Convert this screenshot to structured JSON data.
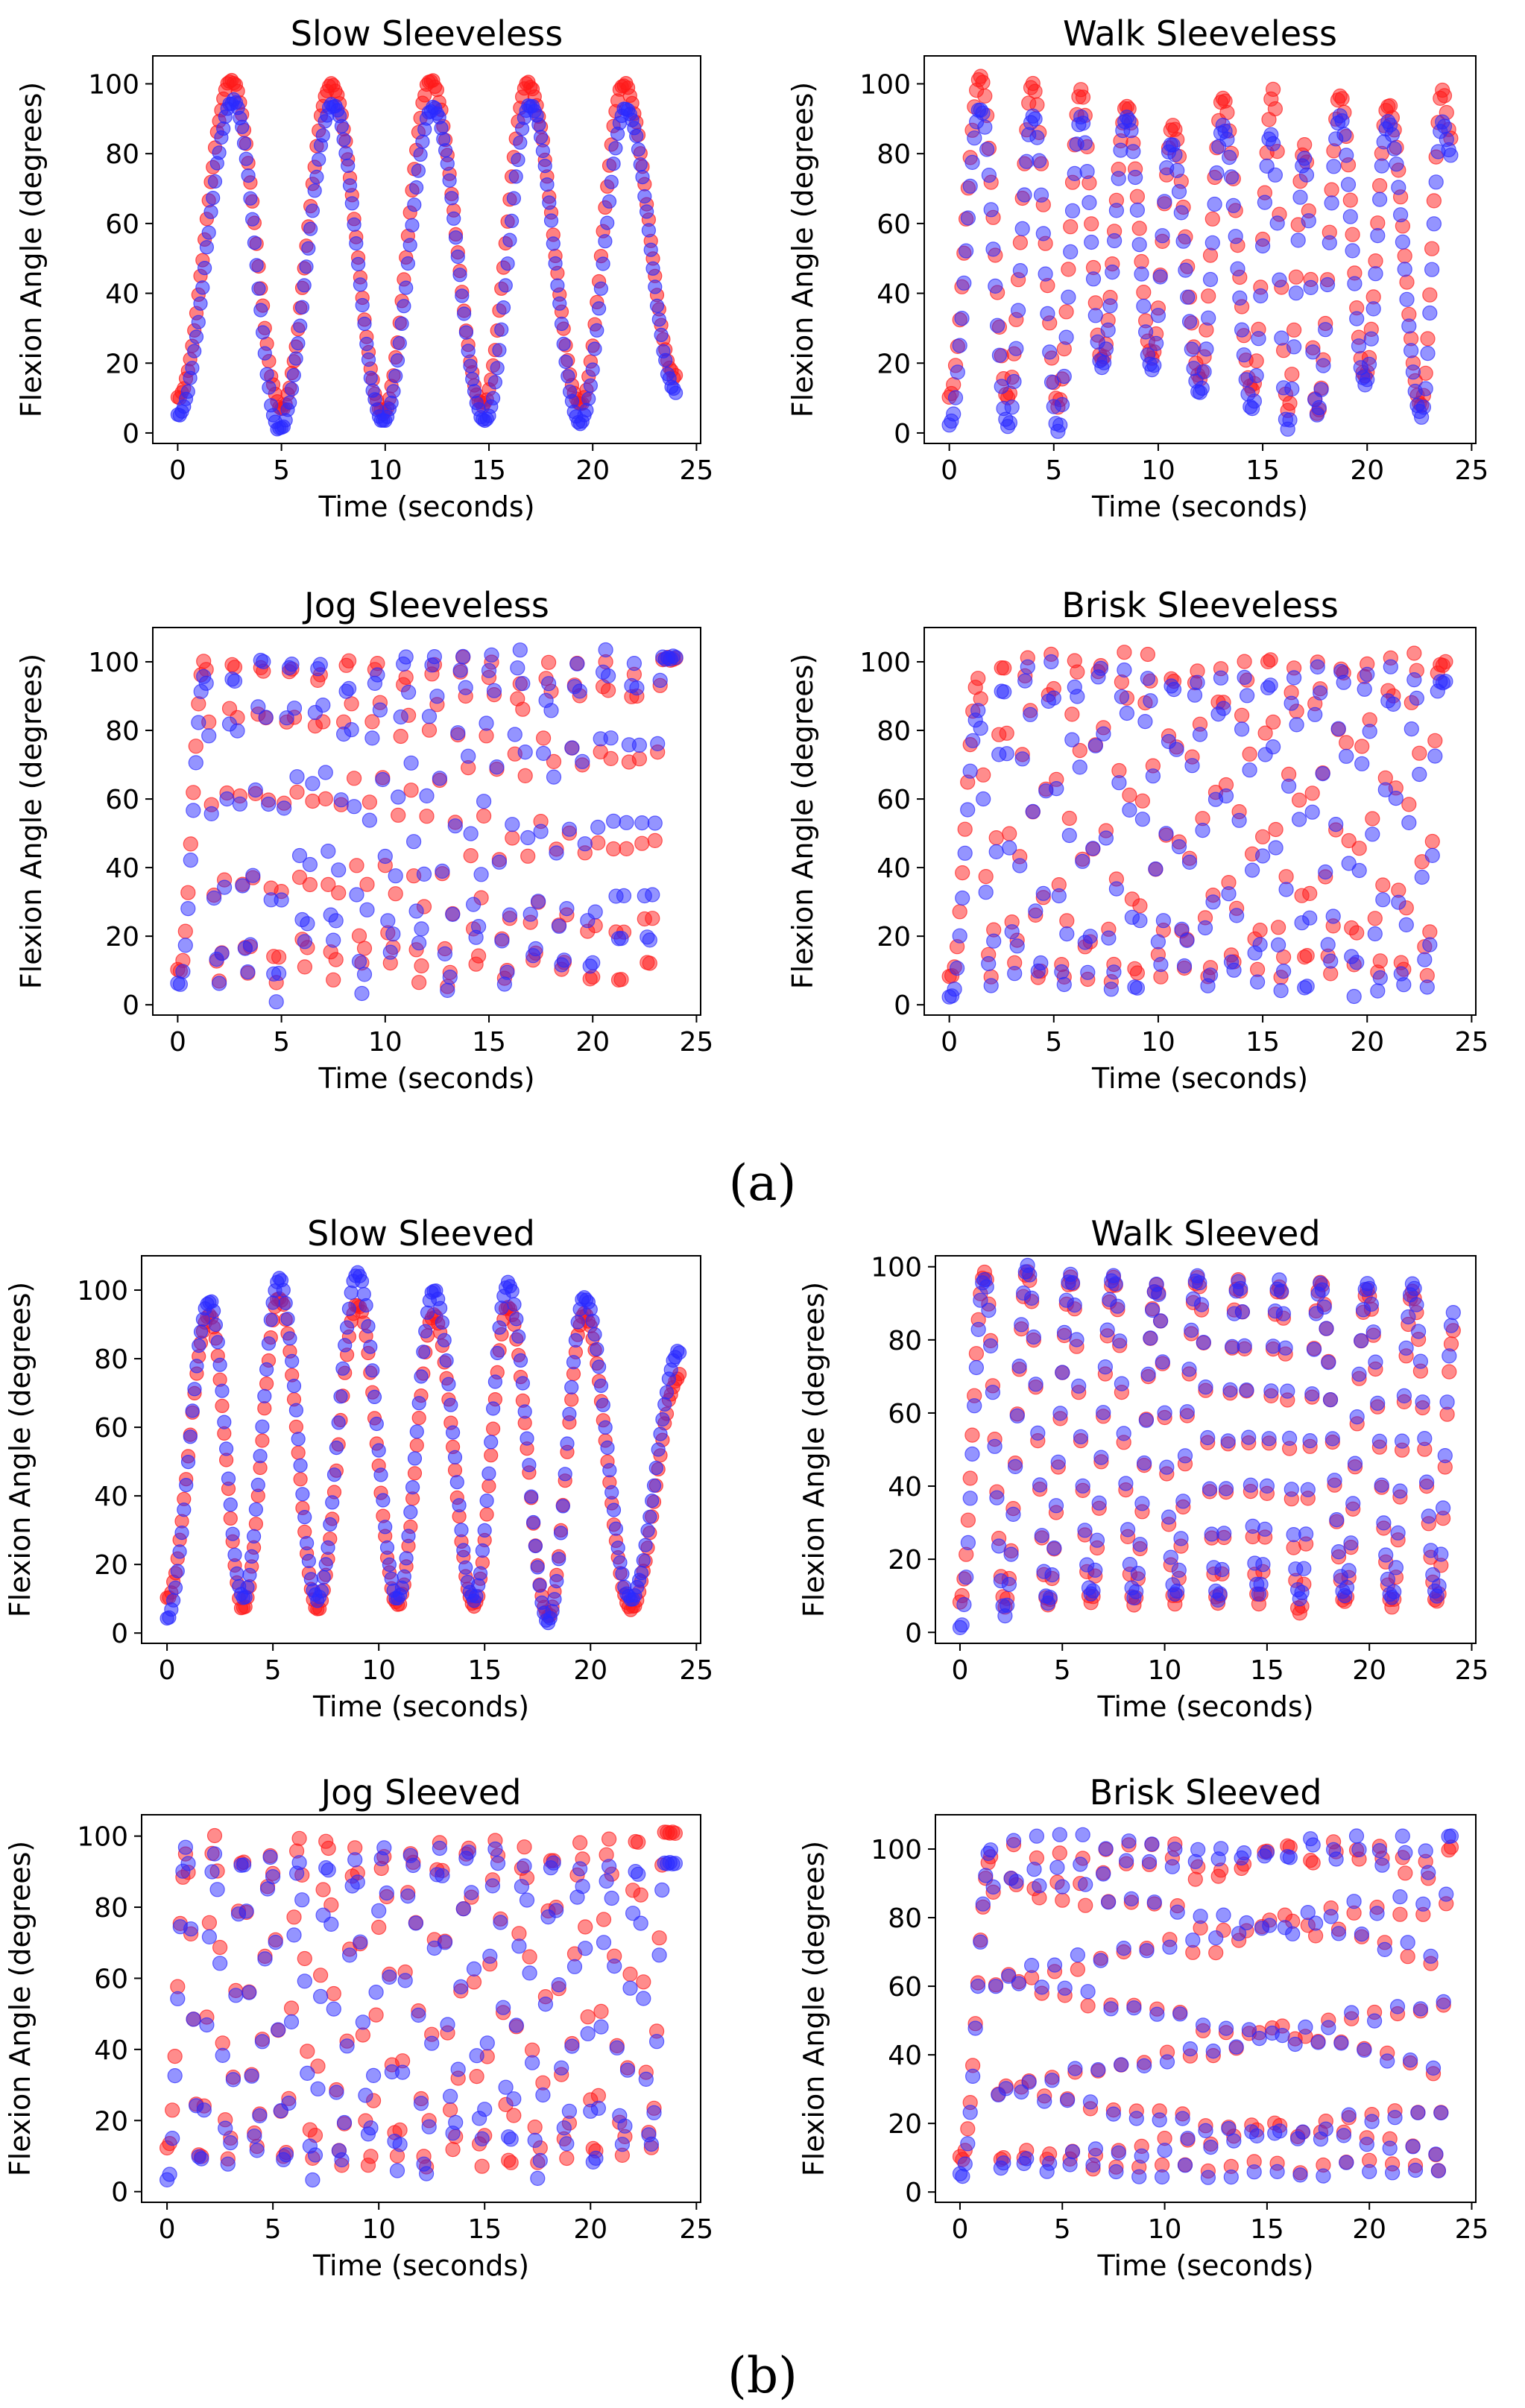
{
  "figure": {
    "panel_labels": {
      "a": "(a)",
      "b": "(b)"
    }
  },
  "colors": {
    "series_red": "#ff1a1a",
    "series_blue": "#2a2aff",
    "axes": "#000000",
    "background": "#ffffff"
  },
  "chart_data": [
    {
      "id": "slow-sleeveless",
      "type": "scatter",
      "title": "Slow Sleeveless",
      "panel": "(a)",
      "xlabel": "Time (seconds)",
      "ylabel": "Flexion Angle (degrees)",
      "xlim": [
        -1.2,
        25.2
      ],
      "ylim": [
        -3,
        108
      ],
      "xticks": [
        0,
        5,
        10,
        15,
        20,
        25
      ],
      "yticks": [
        0,
        20,
        40,
        60,
        80,
        100
      ],
      "sample_rate_hz": 10,
      "dense": true,
      "marker_opacity": 0.55,
      "series": [
        {
          "name": "red",
          "color": "#ff1a1a",
          "start": 10,
          "peaks": [
            [
              2.6,
              101
            ],
            [
              7.4,
              100
            ],
            [
              12.2,
              101
            ],
            [
              16.9,
              100
            ],
            [
              21.5,
              100
            ]
          ],
          "troughs": [
            [
              5.0,
              7
            ],
            [
              9.9,
              6
            ],
            [
              14.7,
              8
            ],
            [
              19.4,
              8
            ]
          ],
          "end": 16,
          "end_t": 24.0
        },
        {
          "name": "blue",
          "color": "#2a2aff",
          "start": 5,
          "peaks": [
            [
              2.7,
              95
            ],
            [
              7.5,
              94
            ],
            [
              12.3,
              93
            ],
            [
              17.0,
              94
            ],
            [
              21.6,
              93
            ]
          ],
          "troughs": [
            [
              4.9,
              1
            ],
            [
              9.9,
              3
            ],
            [
              14.8,
              3
            ],
            [
              19.4,
              3
            ]
          ],
          "end": 12,
          "end_t": 24.0
        }
      ]
    },
    {
      "id": "walk-sleeveless",
      "type": "scatter",
      "title": "Walk Sleeveless",
      "panel": "(a)",
      "xlabel": "Time (seconds)",
      "ylabel": "Flexion Angle (degrees)",
      "xlim": [
        -1.2,
        25.2
      ],
      "ylim": [
        -3,
        108
      ],
      "xticks": [
        0,
        5,
        10,
        15,
        20,
        25
      ],
      "yticks": [
        0,
        20,
        40,
        60,
        80,
        100
      ],
      "sample_rate_hz": 10,
      "dense": false,
      "marker_opacity": 0.5,
      "series": [
        {
          "name": "red",
          "color": "#ff1a1a",
          "start": 10,
          "peaks": [
            [
              1.5,
              102
            ],
            [
              4.0,
              100
            ],
            [
              6.3,
              98
            ],
            [
              8.5,
              94
            ],
            [
              10.7,
              88
            ],
            [
              13.1,
              96
            ],
            [
              15.5,
              98
            ],
            [
              17.0,
              83
            ],
            [
              18.7,
              97
            ],
            [
              21.0,
              94
            ],
            [
              23.6,
              98
            ]
          ],
          "troughs": [
            [
              2.8,
              10
            ],
            [
              5.2,
              8
            ],
            [
              7.3,
              21
            ],
            [
              9.7,
              22
            ],
            [
              12.0,
              16
            ],
            [
              14.5,
              12
            ],
            [
              16.2,
              6
            ],
            [
              17.6,
              5
            ],
            [
              19.9,
              16
            ],
            [
              22.6,
              8
            ]
          ],
          "end": 85,
          "end_t": 24.0
        },
        {
          "name": "blue",
          "color": "#2a2aff",
          "start": 2,
          "peaks": [
            [
              1.5,
              93
            ],
            [
              4.0,
              91
            ],
            [
              6.3,
              90
            ],
            [
              8.5,
              91
            ],
            [
              10.6,
              83
            ],
            [
              13.1,
              88
            ],
            [
              15.4,
              86
            ],
            [
              17.0,
              79
            ],
            [
              18.7,
              91
            ],
            [
              21.0,
              89
            ],
            [
              23.6,
              89
            ]
          ],
          "troughs": [
            [
              2.8,
              2
            ],
            [
              5.2,
              1
            ],
            [
              7.3,
              19
            ],
            [
              9.7,
              18
            ],
            [
              12.0,
              11
            ],
            [
              14.5,
              7
            ],
            [
              16.2,
              1
            ],
            [
              17.6,
              5
            ],
            [
              19.9,
              14
            ],
            [
              22.6,
              5
            ]
          ],
          "end": 80,
          "end_t": 24.0
        }
      ]
    },
    {
      "id": "jog-sleeveless",
      "type": "scatter",
      "title": "Jog Sleeveless",
      "panel": "(a)",
      "xlabel": "Time (seconds)",
      "ylabel": "Flexion Angle (degrees)",
      "xlim": [
        -1.2,
        25.2
      ],
      "ylim": [
        -3,
        110
      ],
      "xticks": [
        0,
        5,
        10,
        15,
        20,
        25
      ],
      "yticks": [
        0,
        20,
        40,
        60,
        80,
        100
      ],
      "sample_rate_hz": 8,
      "dense": false,
      "marker_opacity": 0.5,
      "oscillation": {
        "t0": 1.3,
        "period": 1.38
      },
      "series": [
        {
          "name": "red",
          "color": "#ff1a1a",
          "start": 10,
          "start_t": 0.1,
          "rise_to": 101,
          "peak_low": 94,
          "peak_high": 104,
          "trough_low": 4,
          "trough_high": 12,
          "end_t": 24.0
        },
        {
          "name": "blue",
          "color": "#2a2aff",
          "start": 6,
          "start_t": 0.1,
          "rise_to": 96,
          "peak_low": 92,
          "peak_high": 104,
          "trough_low": 1,
          "trough_high": 20,
          "end_t": 24.0
        }
      ]
    },
    {
      "id": "brisk-sleeveless",
      "type": "scatter",
      "title": "Brisk Sleeveless",
      "panel": "(a)",
      "xlabel": "Time (seconds)",
      "ylabel": "Flexion Angle (degrees)",
      "xlim": [
        -1.2,
        25.2
      ],
      "ylim": [
        -3,
        110
      ],
      "xticks": [
        0,
        5,
        10,
        15,
        20,
        25
      ],
      "yticks": [
        0,
        20,
        40,
        60,
        80,
        100
      ],
      "sample_rate_hz": 8,
      "dense": false,
      "marker_opacity": 0.5,
      "oscillation": {
        "t0": 1.4,
        "period": 1.16
      },
      "series": [
        {
          "name": "red",
          "color": "#ff1a1a",
          "start": 8,
          "start_t": 0.1,
          "rise_to": 95,
          "peak_low": 97,
          "peak_high": 104,
          "trough_low": 6,
          "trough_high": 12,
          "end_t": 23.8
        },
        {
          "name": "blue",
          "color": "#2a2aff",
          "start": 2,
          "start_t": 0.1,
          "rise_to": 86,
          "peak_low": 93,
          "peak_high": 100,
          "trough_low": 2,
          "trough_high": 12,
          "end_t": 23.8
        }
      ]
    },
    {
      "id": "slow-sleeved",
      "type": "scatter",
      "title": "Slow Sleeved",
      "panel": "(b)",
      "xlabel": "Time (seconds)",
      "ylabel": "Flexion Angle (degrees)",
      "xlim": [
        -1.2,
        25.2
      ],
      "ylim": [
        -3,
        110
      ],
      "xticks": [
        0,
        5,
        10,
        15,
        20,
        25
      ],
      "yticks": [
        0,
        20,
        40,
        60,
        80,
        100
      ],
      "sample_rate_hz": 10,
      "dense": true,
      "marker_opacity": 0.55,
      "series": [
        {
          "name": "red",
          "color": "#ff1a1a",
          "start": 10,
          "peaks": [
            [
              2.0,
              93
            ],
            [
              5.3,
              98
            ],
            [
              9.0,
              96
            ],
            [
              12.6,
              93
            ],
            [
              16.1,
              95
            ],
            [
              19.7,
              93
            ]
          ],
          "troughs": [
            [
              3.6,
              7
            ],
            [
              7.1,
              7
            ],
            [
              10.9,
              8
            ],
            [
              14.5,
              8
            ],
            [
              18.0,
              5
            ],
            [
              21.9,
              7
            ]
          ],
          "end": 75,
          "end_t": 24.2
        },
        {
          "name": "blue",
          "color": "#2a2aff",
          "start": 4,
          "peaks": [
            [
              2.0,
              97
            ],
            [
              5.3,
              103
            ],
            [
              9.0,
              105
            ],
            [
              12.6,
              100
            ],
            [
              16.1,
              102
            ],
            [
              19.7,
              98
            ]
          ],
          "troughs": [
            [
              3.6,
              10
            ],
            [
              7.1,
              10
            ],
            [
              10.9,
              10
            ],
            [
              14.5,
              10
            ],
            [
              18.0,
              3
            ],
            [
              21.9,
              10
            ]
          ],
          "end": 82,
          "end_t": 24.2
        }
      ]
    },
    {
      "id": "walk-sleeved",
      "type": "scatter",
      "title": "Walk Sleeved",
      "panel": "(b)",
      "xlabel": "Time (seconds)",
      "ylabel": "Flexion Angle (degrees)",
      "xlim": [
        -1.2,
        25.2
      ],
      "ylim": [
        -3,
        103
      ],
      "xticks": [
        0,
        5,
        10,
        15,
        20,
        25
      ],
      "yticks": [
        0,
        20,
        40,
        60,
        80,
        100
      ],
      "sample_rate_hz": 10,
      "dense": false,
      "marker_opacity": 0.5,
      "series": [
        {
          "name": "red",
          "color": "#ff1a1a",
          "start": 8,
          "peaks": [
            [
              1.2,
              99
            ],
            [
              3.3,
              99
            ],
            [
              5.4,
              97
            ],
            [
              7.5,
              97
            ],
            [
              9.6,
              95
            ],
            [
              11.6,
              97
            ],
            [
              13.6,
              96
            ],
            [
              15.6,
              95
            ],
            [
              17.6,
              96
            ],
            [
              19.9,
              94
            ],
            [
              22.1,
              93
            ]
          ],
          "troughs": [
            [
              2.2,
              7
            ],
            [
              4.3,
              7
            ],
            [
              6.4,
              8
            ],
            [
              8.5,
              8
            ],
            [
              10.5,
              8
            ],
            [
              12.6,
              8
            ],
            [
              14.6,
              8
            ],
            [
              16.6,
              5
            ],
            [
              18.8,
              8
            ],
            [
              21.1,
              7
            ],
            [
              23.3,
              8
            ]
          ],
          "end": 82,
          "end_t": 24.1
        },
        {
          "name": "blue",
          "color": "#2a2aff",
          "start": 1,
          "peaks": [
            [
              1.2,
              97
            ],
            [
              3.3,
              100
            ],
            [
              5.4,
              98
            ],
            [
              7.5,
              98
            ],
            [
              9.6,
              95
            ],
            [
              11.6,
              98
            ],
            [
              13.6,
              96
            ],
            [
              15.6,
              96
            ],
            [
              17.6,
              95
            ],
            [
              19.9,
              95
            ],
            [
              22.1,
              95
            ]
          ],
          "troughs": [
            [
              2.2,
              5
            ],
            [
              4.3,
              8
            ],
            [
              6.4,
              10
            ],
            [
              8.5,
              10
            ],
            [
              10.5,
              10
            ],
            [
              12.6,
              9
            ],
            [
              14.6,
              11
            ],
            [
              16.6,
              9
            ],
            [
              18.8,
              10
            ],
            [
              21.1,
              9
            ],
            [
              23.3,
              10
            ]
          ],
          "end": 87,
          "end_t": 24.1
        }
      ]
    },
    {
      "id": "jog-sleeved",
      "type": "scatter",
      "title": "Jog Sleeved",
      "panel": "(b)",
      "xlabel": "Time (seconds)",
      "ylabel": "Flexion Angle (degrees)",
      "xlim": [
        -1.2,
        25.2
      ],
      "ylim": [
        -3,
        106
      ],
      "xticks": [
        0,
        5,
        10,
        15,
        20,
        25
      ],
      "yticks": [
        0,
        20,
        40,
        60,
        80,
        100
      ],
      "sample_rate_hz": 8,
      "dense": false,
      "marker_opacity": 0.5,
      "oscillation": {
        "t0": 0.9,
        "period": 1.33
      },
      "series": [
        {
          "name": "red",
          "color": "#ff1a1a",
          "start": 12,
          "start_t": 0.05,
          "rise_to": 95,
          "peak_low": 93,
          "peak_high": 101,
          "trough_low": 6,
          "trough_high": 12,
          "end_t": 24.0
        },
        {
          "name": "blue",
          "color": "#2a2aff",
          "start": 3,
          "start_t": 0.05,
          "rise_to": 97,
          "peak_low": 91,
          "peak_high": 98,
          "trough_low": 3,
          "trough_high": 16,
          "end_t": 24.0
        }
      ]
    },
    {
      "id": "brisk-sleeved",
      "type": "scatter",
      "title": "Brisk Sleeved",
      "panel": "(b)",
      "xlabel": "Time (seconds)",
      "ylabel": "Flexion Angle (degrees)",
      "xlim": [
        -1.2,
        25.2
      ],
      "ylim": [
        -3,
        110
      ],
      "xticks": [
        0,
        5,
        10,
        15,
        20,
        25
      ],
      "yticks": [
        0,
        20,
        40,
        60,
        80,
        100
      ],
      "sample_rate_hz": 8,
      "dense": false,
      "marker_opacity": 0.5,
      "oscillation": {
        "t0": 1.5,
        "period": 1.12
      },
      "series": [
        {
          "name": "red",
          "color": "#ff1a1a",
          "start": 10,
          "start_t": 0.1,
          "rise_to": 98,
          "peak_low": 95,
          "peak_high": 104,
          "trough_low": 5,
          "trough_high": 9,
          "end_t": 24.0
        },
        {
          "name": "blue",
          "color": "#2a2aff",
          "start": 5,
          "start_t": 0.1,
          "rise_to": 100,
          "peak_low": 100,
          "peak_high": 106,
          "trough_low": 3,
          "trough_high": 8,
          "end_t": 24.0
        }
      ]
    }
  ]
}
